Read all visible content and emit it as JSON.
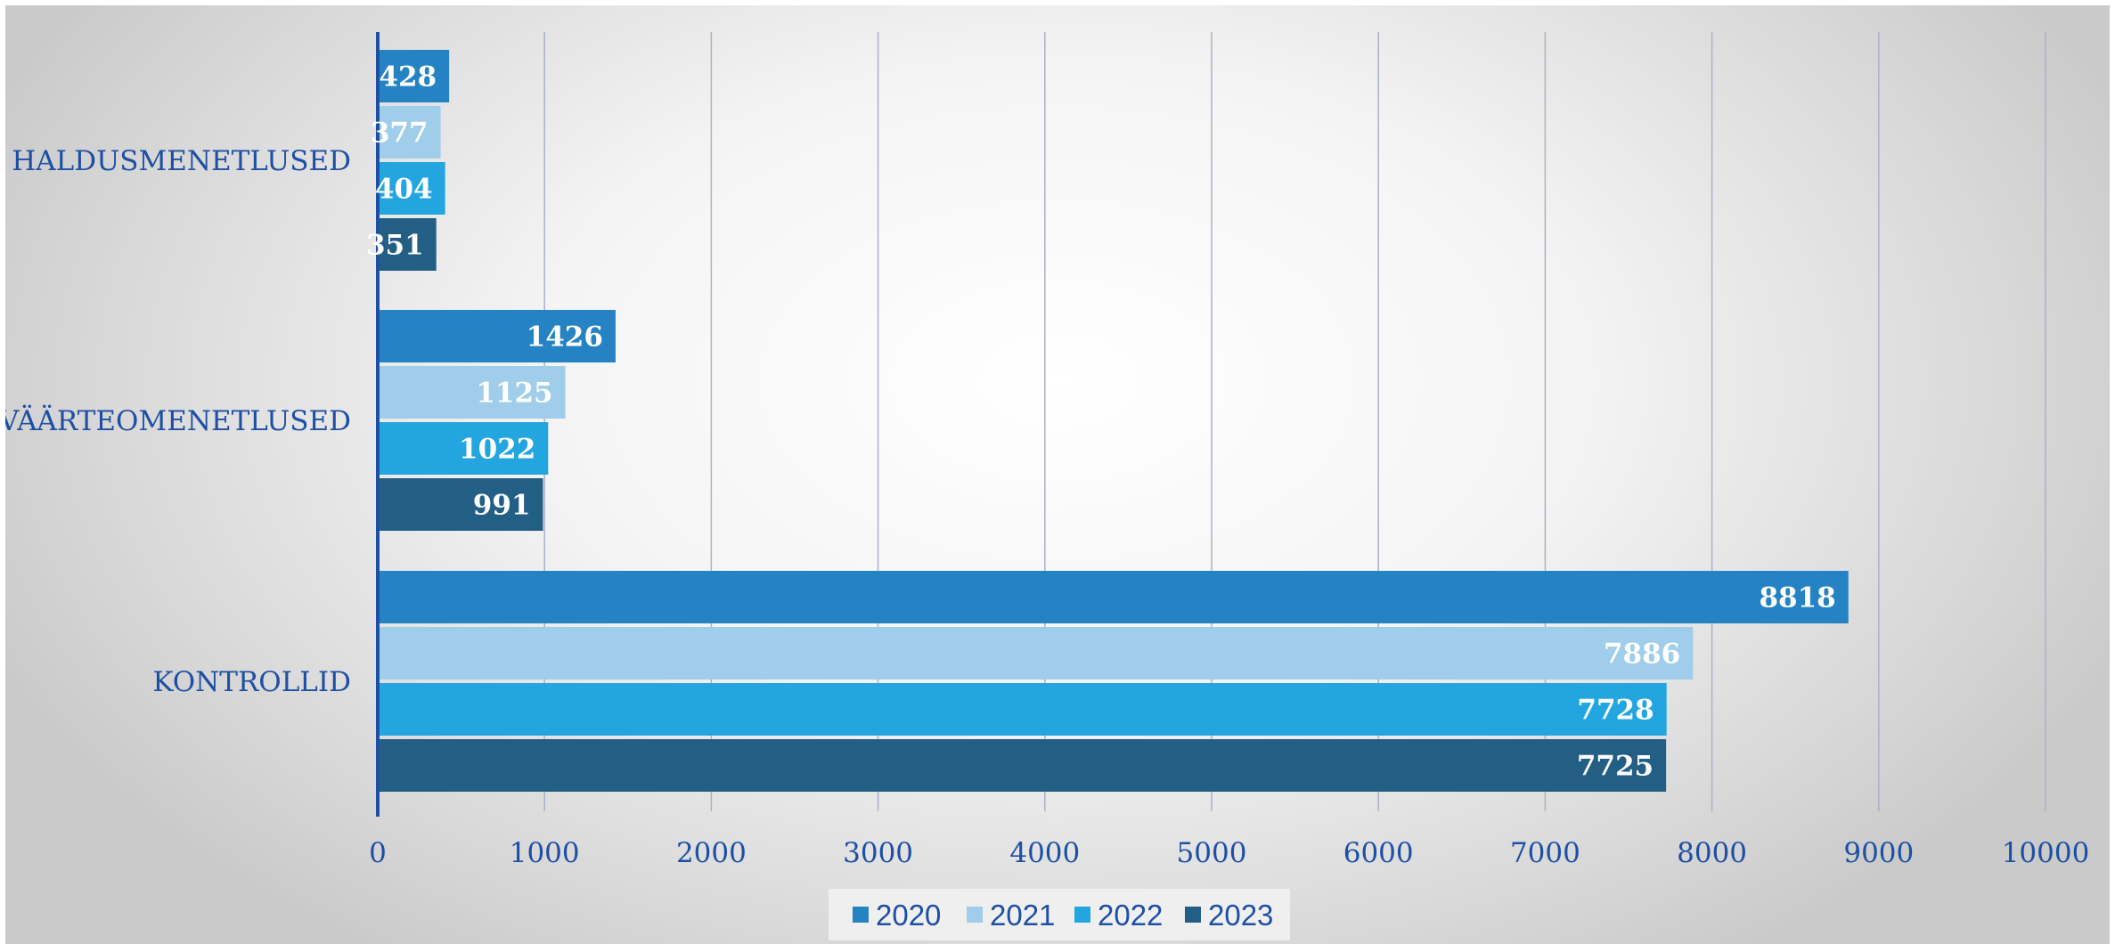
{
  "chart_data": {
    "type": "bar",
    "orientation": "horizontal",
    "categories": [
      "HALDUSMENETLUSED",
      "VÄÄRTEOMENETLUSED",
      "KONTROLLID"
    ],
    "series": [
      {
        "name": "2020",
        "values": [
          428,
          1426,
          8818
        ],
        "color": "#2583c3"
      },
      {
        "name": "2021",
        "values": [
          377,
          1125,
          7886
        ],
        "color": "#a0cdea"
      },
      {
        "name": "2022",
        "values": [
          404,
          1022,
          7728
        ],
        "color": "#23a6e0"
      },
      {
        "name": "2023",
        "values": [
          351,
          991,
          7725
        ],
        "color": "#235e85"
      }
    ],
    "x_ticks": [
      "0",
      "1000",
      "2000",
      "3000",
      "4000",
      "5000",
      "6000",
      "7000",
      "8000",
      "9000",
      "10000"
    ],
    "xlim": [
      0,
      10000
    ],
    "grid": true,
    "data_labels": true,
    "legend_position": "bottom",
    "title": "",
    "xlabel": "",
    "ylabel": "",
    "colors": {
      "axis": "#1d4fa3",
      "grid": "#a9b2c6",
      "text": "#1d4fa3",
      "bar_label": "#ffffff"
    }
  }
}
